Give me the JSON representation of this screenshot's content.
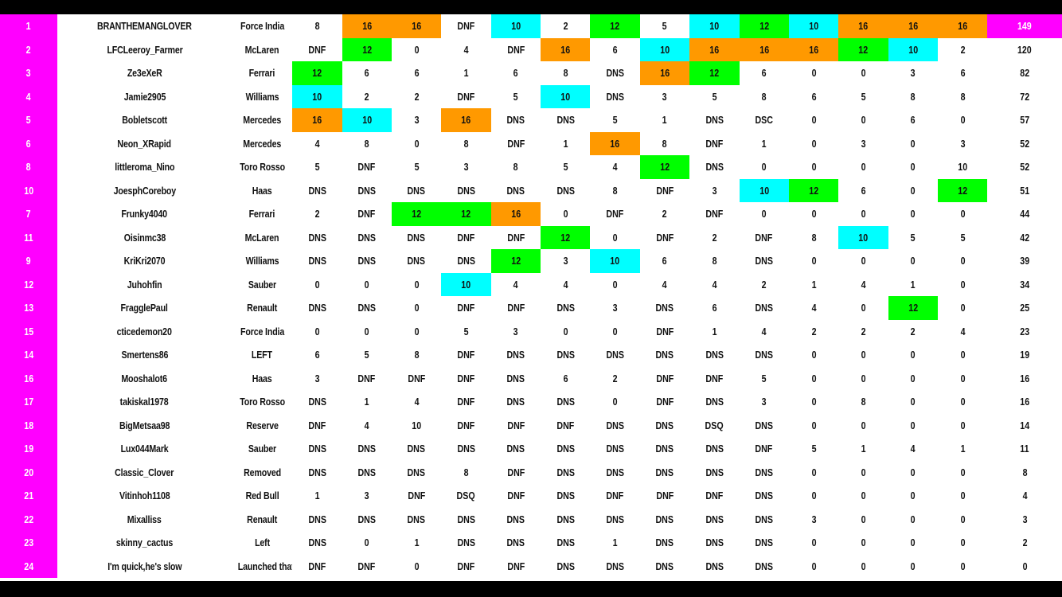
{
  "colors": {
    "orange": "#ff9900",
    "cyan": "#00ffff",
    "green": "#00ff00",
    "magenta": "#ff00ff"
  },
  "standings": [
    {
      "pos": "1",
      "driver": "BRANTHEMANGLOVER",
      "team": "Force India",
      "races": [
        "8",
        "16",
        "16",
        "DNF",
        "10",
        "2",
        "12",
        "5",
        "10",
        "12",
        "10",
        "16",
        "16",
        "16"
      ],
      "hl": [
        "",
        "o",
        "o",
        "",
        "c",
        "",
        "g",
        "",
        "c",
        "g",
        "c",
        "o",
        "o",
        "o"
      ],
      "total": "149",
      "total_hl": "m"
    },
    {
      "pos": "2",
      "driver": "LFCLeeroy_Farmer",
      "team": "McLaren",
      "races": [
        "DNF",
        "12",
        "0",
        "4",
        "DNF",
        "16",
        "6",
        "10",
        "16",
        "16",
        "16",
        "12",
        "10",
        "2"
      ],
      "hl": [
        "",
        "g",
        "",
        "",
        "",
        "o",
        "",
        "c",
        "o",
        "o",
        "o",
        "g",
        "c",
        ""
      ],
      "total": "120",
      "total_hl": ""
    },
    {
      "pos": "3",
      "driver": "Ze3eXeR",
      "team": "Ferrari",
      "races": [
        "12",
        "6",
        "6",
        "1",
        "6",
        "8",
        "DNS",
        "16",
        "12",
        "6",
        "0",
        "0",
        "3",
        "6"
      ],
      "hl": [
        "g",
        "",
        "",
        "",
        "",
        "",
        "",
        "o",
        "g",
        "",
        "",
        "",
        "",
        ""
      ],
      "total": "82",
      "total_hl": ""
    },
    {
      "pos": "4",
      "driver": "Jamie2905",
      "team": "Williams",
      "races": [
        "10",
        "2",
        "2",
        "DNF",
        "5",
        "10",
        "DNS",
        "3",
        "5",
        "8",
        "6",
        "5",
        "8",
        "8"
      ],
      "hl": [
        "c",
        "",
        "",
        "",
        "",
        "c",
        "",
        "",
        "",
        "",
        "",
        "",
        "",
        ""
      ],
      "total": "72",
      "total_hl": ""
    },
    {
      "pos": "5",
      "driver": "Bobletscott",
      "team": "Mercedes",
      "races": [
        "16",
        "10",
        "3",
        "16",
        "DNS",
        "DNS",
        "5",
        "1",
        "DNS",
        "DSC",
        "0",
        "0",
        "6",
        "0"
      ],
      "hl": [
        "o",
        "c",
        "",
        "o",
        "",
        "",
        "",
        "",
        "",
        "",
        "",
        "",
        "",
        ""
      ],
      "total": "57",
      "total_hl": ""
    },
    {
      "pos": "6",
      "driver": "Neon_XRapid",
      "team": "Mercedes",
      "races": [
        "4",
        "8",
        "0",
        "8",
        "DNF",
        "1",
        "16",
        "8",
        "DNF",
        "1",
        "0",
        "3",
        "0",
        "3"
      ],
      "hl": [
        "",
        "",
        "",
        "",
        "",
        "",
        "o",
        "",
        "",
        "",
        "",
        "",
        "",
        ""
      ],
      "total": "52",
      "total_hl": ""
    },
    {
      "pos": "8",
      "driver": "littleroma_Nino",
      "team": "Toro Rosso",
      "races": [
        "5",
        "DNF",
        "5",
        "3",
        "8",
        "5",
        "4",
        "12",
        "DNS",
        "0",
        "0",
        "0",
        "0",
        "10"
      ],
      "hl": [
        "",
        "",
        "",
        "",
        "",
        "",
        "",
        "g",
        "",
        "",
        "",
        "",
        "",
        ""
      ],
      "total": "52",
      "total_hl": ""
    },
    {
      "pos": "10",
      "driver": "JoesphCoreboy",
      "team": "Haas",
      "races": [
        "DNS",
        "DNS",
        "DNS",
        "DNS",
        "DNS",
        "DNS",
        "8",
        "DNF",
        "3",
        "10",
        "12",
        "6",
        "0",
        "12"
      ],
      "hl": [
        "",
        "",
        "",
        "",
        "",
        "",
        "",
        "",
        "",
        "c",
        "g",
        "",
        "",
        "g"
      ],
      "total": "51",
      "total_hl": ""
    },
    {
      "pos": "7",
      "driver": "Frunky4040",
      "team": "Ferrari",
      "races": [
        "2",
        "DNF",
        "12",
        "12",
        "16",
        "0",
        "DNF",
        "2",
        "DNF",
        "0",
        "0",
        "0",
        "0",
        "0"
      ],
      "hl": [
        "",
        "",
        "g",
        "g",
        "o",
        "",
        "",
        "",
        "",
        "",
        "",
        "",
        "",
        ""
      ],
      "total": "44",
      "total_hl": ""
    },
    {
      "pos": "11",
      "driver": "Oisinmc38",
      "team": "McLaren",
      "races": [
        "DNS",
        "DNS",
        "DNS",
        "DNF",
        "DNF",
        "12",
        "0",
        "DNF",
        "2",
        "DNF",
        "8",
        "10",
        "5",
        "5"
      ],
      "hl": [
        "",
        "",
        "",
        "",
        "",
        "g",
        "",
        "",
        "",
        "",
        "",
        "c",
        "",
        ""
      ],
      "total": "42",
      "total_hl": ""
    },
    {
      "pos": "9",
      "driver": "KriKri2070",
      "team": "Williams",
      "races": [
        "DNS",
        "DNS",
        "DNS",
        "DNS",
        "12",
        "3",
        "10",
        "6",
        "8",
        "DNS",
        "0",
        "0",
        "0",
        "0"
      ],
      "hl": [
        "",
        "",
        "",
        "",
        "g",
        "",
        "c",
        "",
        "",
        "",
        "",
        "",
        "",
        ""
      ],
      "total": "39",
      "total_hl": ""
    },
    {
      "pos": "12",
      "driver": "Juhohfin",
      "team": "Sauber",
      "races": [
        "0",
        "0",
        "0",
        "10",
        "4",
        "4",
        "0",
        "4",
        "4",
        "2",
        "1",
        "4",
        "1",
        "0"
      ],
      "hl": [
        "",
        "",
        "",
        "c",
        "",
        "",
        "",
        "",
        "",
        "",
        "",
        "",
        "",
        ""
      ],
      "total": "34",
      "total_hl": ""
    },
    {
      "pos": "13",
      "driver": "FragglePaul",
      "team": "Renault",
      "races": [
        "DNS",
        "DNS",
        "0",
        "DNF",
        "DNF",
        "DNS",
        "3",
        "DNS",
        "6",
        "DNS",
        "4",
        "0",
        "12",
        "0"
      ],
      "hl": [
        "",
        "",
        "",
        "",
        "",
        "",
        "",
        "",
        "",
        "",
        "",
        "",
        "g",
        ""
      ],
      "total": "25",
      "total_hl": ""
    },
    {
      "pos": "15",
      "driver": "cticedemon20",
      "team": "Force India",
      "races": [
        "0",
        "0",
        "0",
        "5",
        "3",
        "0",
        "0",
        "DNF",
        "1",
        "4",
        "2",
        "2",
        "2",
        "4"
      ],
      "hl": [
        "",
        "",
        "",
        "",
        "",
        "",
        "",
        "",
        "",
        "",
        "",
        "",
        "",
        ""
      ],
      "total": "23",
      "total_hl": ""
    },
    {
      "pos": "14",
      "driver": "Smertens86",
      "team": "LEFT",
      "races": [
        "6",
        "5",
        "8",
        "DNF",
        "DNS",
        "DNS",
        "DNS",
        "DNS",
        "DNS",
        "DNS",
        "0",
        "0",
        "0",
        "0"
      ],
      "hl": [
        "",
        "",
        "",
        "",
        "",
        "",
        "",
        "",
        "",
        "",
        "",
        "",
        "",
        ""
      ],
      "total": "19",
      "total_hl": ""
    },
    {
      "pos": "16",
      "driver": "Mooshalot6",
      "team": "Haas",
      "races": [
        "3",
        "DNF",
        "DNF",
        "DNF",
        "DNS",
        "6",
        "2",
        "DNF",
        "DNF",
        "5",
        "0",
        "0",
        "0",
        "0"
      ],
      "hl": [
        "",
        "",
        "",
        "",
        "",
        "",
        "",
        "",
        "",
        "",
        "",
        "",
        "",
        ""
      ],
      "total": "16",
      "total_hl": ""
    },
    {
      "pos": "17",
      "driver": "takiskal1978",
      "team": "Toro Rosso",
      "races": [
        "DNS",
        "1",
        "4",
        "DNF",
        "DNS",
        "DNS",
        "0",
        "DNF",
        "DNS",
        "3",
        "0",
        "8",
        "0",
        "0"
      ],
      "hl": [
        "",
        "",
        "",
        "",
        "",
        "",
        "",
        "",
        "",
        "",
        "",
        "",
        "",
        ""
      ],
      "total": "16",
      "total_hl": ""
    },
    {
      "pos": "18",
      "driver": "BigMetsaa98",
      "team": "Reserve",
      "races": [
        "DNF",
        "4",
        "10",
        "DNF",
        "DNF",
        "DNF",
        "DNS",
        "DNS",
        "DSQ",
        "DNS",
        "0",
        "0",
        "0",
        "0"
      ],
      "hl": [
        "",
        "",
        "",
        "",
        "",
        "",
        "",
        "",
        "",
        "",
        "",
        "",
        "",
        ""
      ],
      "total": "14",
      "total_hl": ""
    },
    {
      "pos": "19",
      "driver": "Lux044Mark",
      "team": "Sauber",
      "races": [
        "DNS",
        "DNS",
        "DNS",
        "DNS",
        "DNS",
        "DNS",
        "DNS",
        "DNS",
        "DNS",
        "DNF",
        "5",
        "1",
        "4",
        "1"
      ],
      "hl": [
        "",
        "",
        "",
        "",
        "",
        "",
        "",
        "",
        "",
        "",
        "",
        "",
        "",
        ""
      ],
      "total": "11",
      "total_hl": ""
    },
    {
      "pos": "20",
      "driver": "Classic_Clover",
      "team": "Removed",
      "races": [
        "DNS",
        "DNS",
        "DNS",
        "8",
        "DNF",
        "DNS",
        "DNS",
        "DNS",
        "DNS",
        "DNS",
        "0",
        "0",
        "0",
        "0"
      ],
      "hl": [
        "",
        "",
        "",
        "",
        "",
        "",
        "",
        "",
        "",
        "",
        "",
        "",
        "",
        ""
      ],
      "total": "8",
      "total_hl": ""
    },
    {
      "pos": "21",
      "driver": "Vitinhoh1108",
      "team": "Red Bull",
      "races": [
        "1",
        "3",
        "DNF",
        "DSQ",
        "DNF",
        "DNS",
        "DNF",
        "DNF",
        "DNF",
        "DNS",
        "0",
        "0",
        "0",
        "0"
      ],
      "hl": [
        "",
        "",
        "",
        "",
        "",
        "",
        "",
        "",
        "",
        "",
        "",
        "",
        "",
        ""
      ],
      "total": "4",
      "total_hl": ""
    },
    {
      "pos": "22",
      "driver": "Mixalliss",
      "team": "Renault",
      "races": [
        "DNS",
        "DNS",
        "DNS",
        "DNS",
        "DNS",
        "DNS",
        "DNS",
        "DNS",
        "DNS",
        "DNS",
        "3",
        "0",
        "0",
        "0"
      ],
      "hl": [
        "",
        "",
        "",
        "",
        "",
        "",
        "",
        "",
        "",
        "",
        "",
        "",
        "",
        ""
      ],
      "total": "3",
      "total_hl": ""
    },
    {
      "pos": "23",
      "driver": "skinny_cactus",
      "team": "Left",
      "races": [
        "DNS",
        "0",
        "1",
        "DNS",
        "DNS",
        "DNS",
        "1",
        "DNS",
        "DNS",
        "DNS",
        "0",
        "0",
        "0",
        "0"
      ],
      "hl": [
        "",
        "",
        "",
        "",
        "",
        "",
        "",
        "",
        "",
        "",
        "",
        "",
        "",
        ""
      ],
      "total": "2",
      "total_hl": ""
    },
    {
      "pos": "24",
      "driver": "I'm quick,he's slow",
      "team": "Launched that",
      "races": [
        "DNF",
        "DNF",
        "0",
        "DNF",
        "DNF",
        "DNS",
        "DNS",
        "DNS",
        "DNS",
        "DNS",
        "0",
        "0",
        "0",
        "0"
      ],
      "hl": [
        "",
        "",
        "",
        "",
        "",
        "",
        "",
        "",
        "",
        "",
        "",
        "",
        "",
        ""
      ],
      "total": "0",
      "total_hl": ""
    }
  ]
}
